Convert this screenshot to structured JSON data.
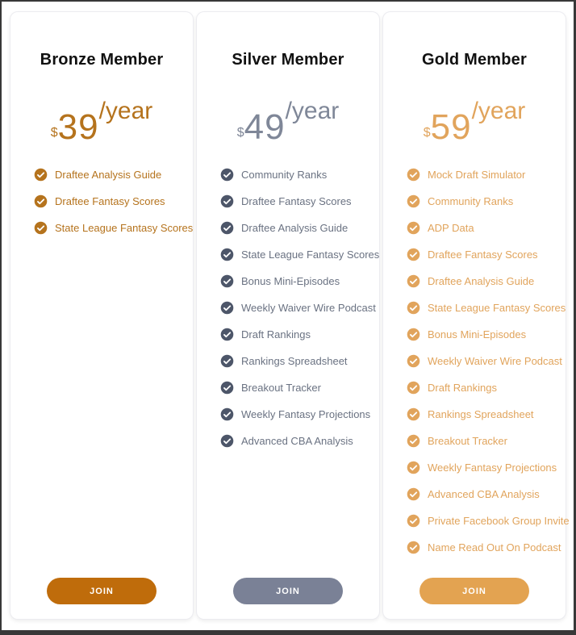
{
  "frame": {
    "border_color": "#383838",
    "background": "#ffffff"
  },
  "icons": {
    "feature_bullet": "check-circle-icon"
  },
  "plans": [
    {
      "name": "bronze",
      "title": "Bronze Member",
      "title_color": "#111111",
      "currency": "$",
      "amount": "39",
      "period": "/year",
      "price_color": "#b5731d",
      "check_color": "#b5731d",
      "feature_text_color": "#b5731d",
      "button_color": "#bf6c0b",
      "button_label": "JOIN",
      "features": [
        "Draftee Analysis Guide",
        "Draftee Fantasy Scores",
        "State League Fantasy Scores"
      ]
    },
    {
      "name": "silver",
      "title": "Silver Member",
      "title_color": "#111111",
      "currency": "$",
      "amount": "49",
      "period": "/year",
      "price_color": "#7f8798",
      "check_color": "#4d5669",
      "feature_text_color": "#6a7282",
      "button_color": "#7a8196",
      "button_label": "JOIN",
      "features": [
        "Community Ranks",
        "Draftee Fantasy Scores",
        "Draftee Analysis Guide",
        "State League Fantasy Scores",
        "Bonus Mini-Episodes",
        "Weekly Waiver Wire Podcast",
        "Draft Rankings",
        "Rankings Spreadsheet",
        "Breakout Tracker",
        "Weekly Fantasy Projections",
        "Advanced CBA Analysis"
      ]
    },
    {
      "name": "gold",
      "title": "Gold Member",
      "title_color": "#111111",
      "currency": "$",
      "amount": "59",
      "period": "/year",
      "price_color": "#e1a45c",
      "check_color": "#e1a45c",
      "feature_text_color": "#e1a45c",
      "button_color": "#e3a351",
      "button_label": "JOIN",
      "features": [
        "Mock Draft Simulator",
        "Community Ranks",
        "ADP Data",
        "Draftee Fantasy Scores",
        "Draftee Analysis Guide",
        "State League Fantasy Scores",
        "Bonus Mini-Episodes",
        "Weekly Waiver Wire Podcast",
        "Draft Rankings",
        "Rankings Spreadsheet",
        "Breakout Tracker",
        "Weekly Fantasy Projections",
        "Advanced CBA Analysis",
        "Private Facebook Group Invite",
        "Name Read Out On Podcast"
      ]
    }
  ]
}
